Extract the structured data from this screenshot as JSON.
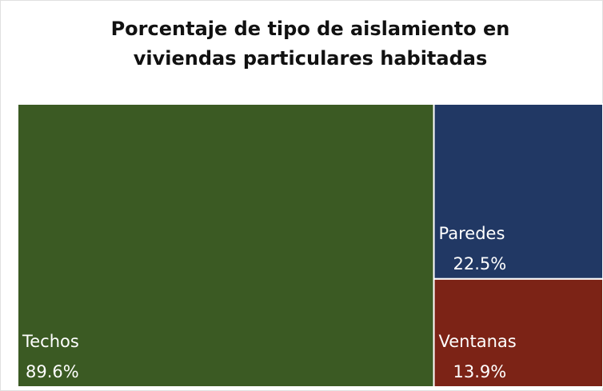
{
  "chart_data": {
    "type": "treemap",
    "title": "Porcentaje de tipo de aislamiento en viviendas particulares habitadas",
    "categories": [
      "Techos",
      "Paredes",
      "Ventanas"
    ],
    "values": [
      89.6,
      22.5,
      13.9
    ],
    "value_labels": [
      "89.6%",
      "22.5%",
      "13.9%"
    ],
    "colors": [
      "#3b5a23",
      "#213864",
      "#7c2316"
    ]
  }
}
